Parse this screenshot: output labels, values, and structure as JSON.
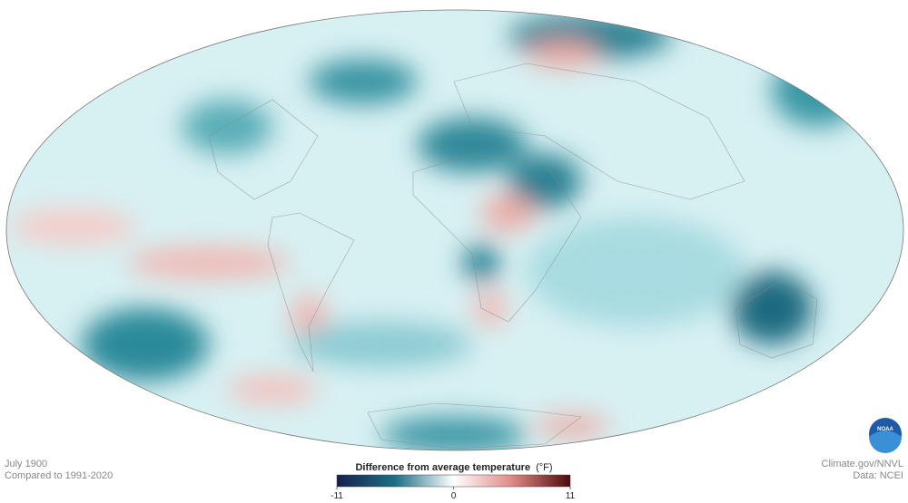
{
  "caption": {
    "date": "July 1900",
    "baseline": "Compared to 1991-2020"
  },
  "credits": {
    "source": "Climate.gov/NNVL",
    "data": "Data: NCEI",
    "logo": "NOAA"
  },
  "legend": {
    "title": "Difference from average temperature",
    "unit": "(°F)",
    "range": [
      -11,
      11
    ],
    "ticks": [
      -11,
      0,
      11
    ]
  }
}
